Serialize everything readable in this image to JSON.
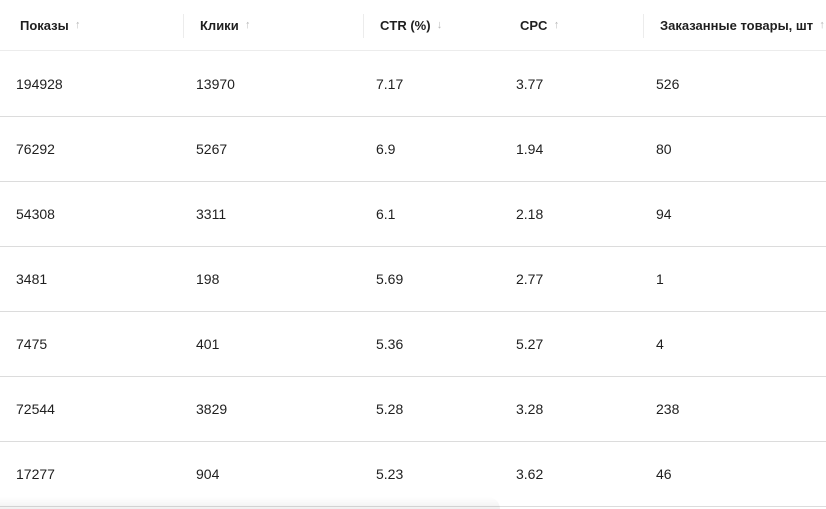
{
  "columns": [
    {
      "label": "Показы",
      "sort_icon": "arrow-up-icon",
      "sort_glyph": "↑"
    },
    {
      "label": "Клики",
      "sort_icon": "arrow-up-icon",
      "sort_glyph": "↑"
    },
    {
      "label": "CTR (%)",
      "sort_icon": "arrow-down-icon",
      "sort_glyph": "↓"
    },
    {
      "label": "CPC",
      "sort_icon": "arrow-up-icon",
      "sort_glyph": "↑"
    },
    {
      "label": "Заказанные товары, шт",
      "sort_icon": "arrow-up-icon",
      "sort_glyph": "↑"
    }
  ],
  "rows": [
    [
      "194928",
      "13970",
      "7.17",
      "3.77",
      "526"
    ],
    [
      "76292",
      "5267",
      "6.9",
      "1.94",
      "80"
    ],
    [
      "54308",
      "3311",
      "6.1",
      "2.18",
      "94"
    ],
    [
      "3481",
      "198",
      "5.69",
      "2.77",
      "1"
    ],
    [
      "7475",
      "401",
      "5.36",
      "5.27",
      "4"
    ],
    [
      "72544",
      "3829",
      "5.28",
      "3.28",
      "238"
    ],
    [
      "17277",
      "904",
      "5.23",
      "3.62",
      "46"
    ]
  ],
  "colors": {
    "text": "#1f1f1f",
    "sort_icon": "#b8b8b8",
    "row_divider": "#dcdcdc"
  }
}
